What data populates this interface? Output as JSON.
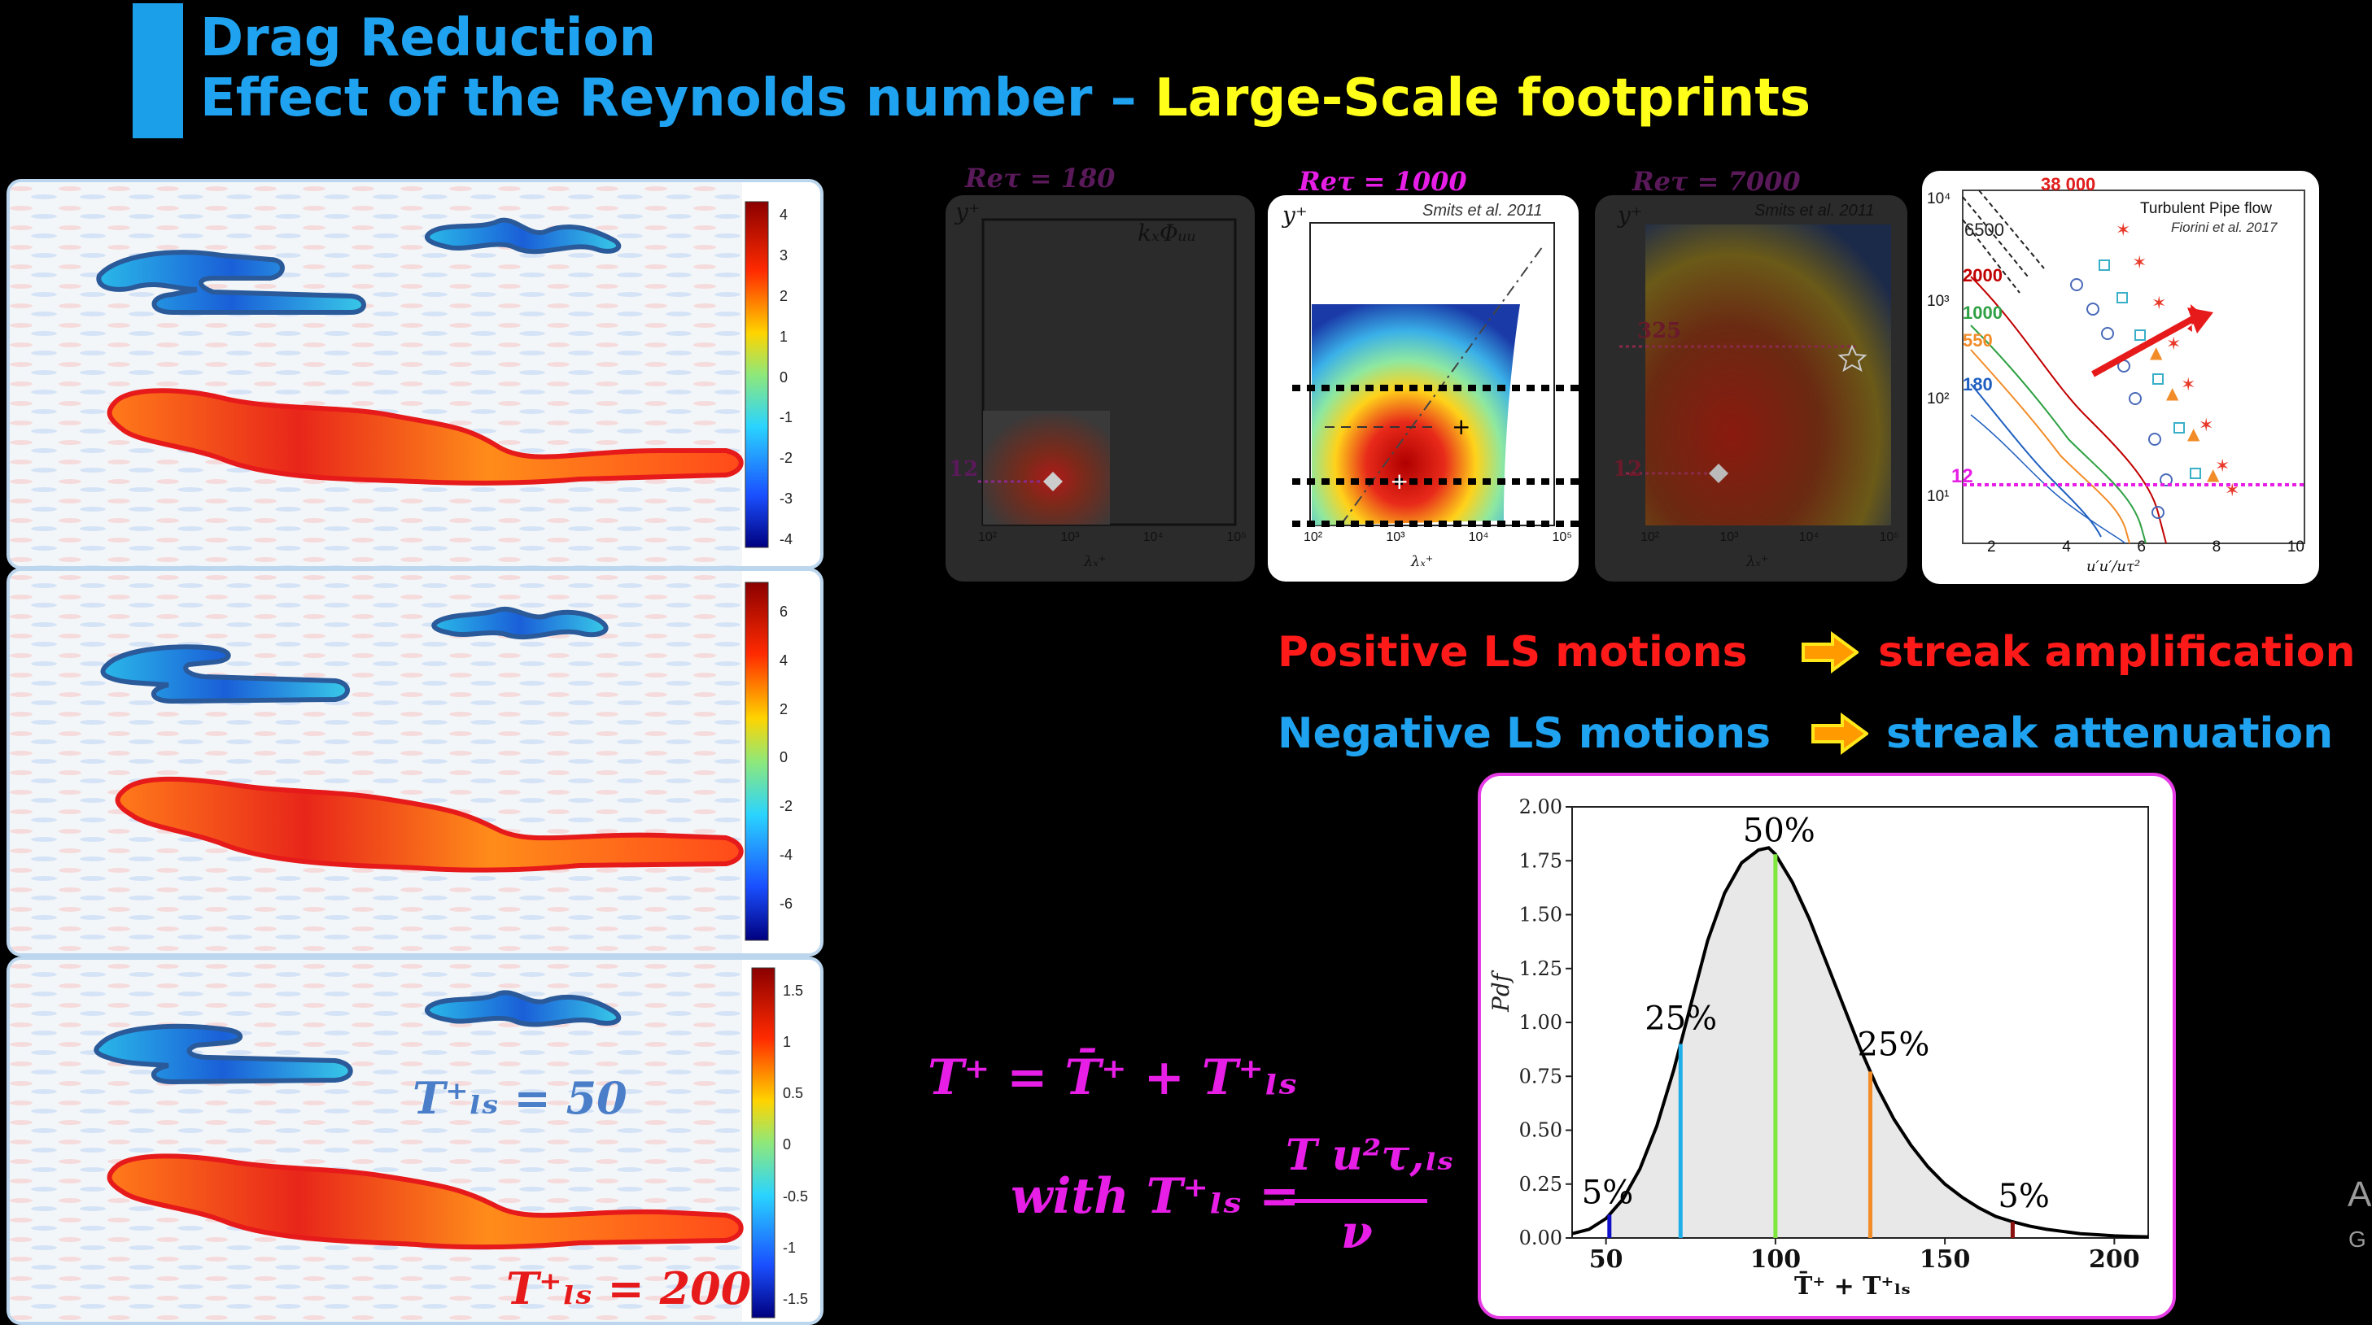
{
  "title": {
    "line1": "Drag Reduction",
    "line2_prefix": "Effect of the Reynolds number – ",
    "line2_highlight": "Large-Scale footprints"
  },
  "colorbars": [
    {
      "ticks": [
        "4",
        "3",
        "2",
        "1",
        "0",
        "-1",
        "-2",
        "-3",
        "-4"
      ]
    },
    {
      "ticks": [
        "6",
        "4",
        "2",
        "0",
        "-2",
        "-4",
        "-6"
      ]
    },
    {
      "ticks": [
        "1.5",
        "1",
        "0.5",
        "0",
        "-0.5",
        "-1",
        "-1.5"
      ]
    }
  ],
  "field_labels": {
    "t50": "T⁺ₗₛ = 50",
    "t200": "T⁺ₗₛ = 200"
  },
  "spectra": [
    {
      "re_label": "Reτ = 180",
      "ylabel": "y⁺",
      "corner": "kₓΦᵤᵤ",
      "marker": "12",
      "xlabel": "λₓ⁺",
      "xticks": [
        "10²",
        "10³",
        "10⁴",
        "10⁵"
      ]
    },
    {
      "re_label": "Reτ = 1000",
      "ylabel": "y⁺",
      "corner": "Smits et al. 2011",
      "xlabel": "λₓ⁺",
      "xticks": [
        "10²",
        "10³",
        "10⁴",
        "10⁵"
      ]
    },
    {
      "re_label": "Reτ = 7000",
      "ylabel": "y⁺",
      "corner": "Smits et al. 2011",
      "marker_top": "325",
      "marker": "12",
      "xlabel": "λₓ⁺",
      "xticks": [
        "10²",
        "10³",
        "10⁴",
        "10⁵"
      ]
    }
  ],
  "pipe": {
    "title": "Turbulent Pipe flow",
    "subtitle": "Fiorini et al. 2017",
    "re_labels": [
      {
        "text": "38 000",
        "color": "#e11d1d"
      },
      {
        "text": "6500",
        "color": "#222222"
      },
      {
        "text": "2000",
        "color": "#c00000"
      },
      {
        "text": "1000",
        "color": "#2ea043"
      },
      {
        "text": "550",
        "color": "#f28c28"
      },
      {
        "text": "180",
        "color": "#1f5fbf"
      }
    ],
    "marker": "12",
    "yticks": [
      "10⁴",
      "10³",
      "10²",
      "10¹"
    ],
    "xticks": [
      "2",
      "4",
      "6",
      "8",
      "10"
    ],
    "xlabel": "u′u′/uτ²"
  },
  "motions": {
    "positive": {
      "label": "Positive LS motions",
      "arrow": "➡",
      "result": "streak amplification",
      "color": "#ff1a1a"
    },
    "negative": {
      "label": "Negative LS motions",
      "arrow": "➡",
      "result": "streak attenuation",
      "color": "#1fa2f0"
    }
  },
  "formula": {
    "line1": "T⁺ = T̄⁺ + T⁺ₗₛ",
    "with": "with T⁺ₗₛ =",
    "numerator": "T u²τ,ₗₛ",
    "denominator": "ν"
  },
  "chart_data": {
    "type": "area",
    "ylabel": "Pdf",
    "xlabel": "T̄⁺ + T⁺ₗₛ",
    "xlim": [
      40,
      210
    ],
    "ylim": [
      0,
      2.0
    ],
    "xticks": [
      "50",
      "100",
      "150",
      "200"
    ],
    "yticks": [
      "0.00",
      "0.25",
      "0.50",
      "0.75",
      "1.00",
      "1.25",
      "1.50",
      "1.75",
      "2.00"
    ],
    "curve": {
      "x": [
        40,
        45,
        50,
        55,
        60,
        65,
        70,
        75,
        80,
        85,
        90,
        95,
        98,
        100,
        105,
        110,
        115,
        120,
        125,
        130,
        135,
        140,
        145,
        150,
        155,
        160,
        165,
        170,
        175,
        180,
        185,
        190,
        195,
        200,
        205,
        210
      ],
      "y": [
        0.02,
        0.04,
        0.09,
        0.18,
        0.32,
        0.52,
        0.78,
        1.08,
        1.38,
        1.6,
        1.74,
        1.8,
        1.81,
        1.78,
        1.65,
        1.48,
        1.28,
        1.08,
        0.88,
        0.7,
        0.55,
        0.43,
        0.33,
        0.25,
        0.19,
        0.14,
        0.1,
        0.075,
        0.055,
        0.04,
        0.03,
        0.02,
        0.015,
        0.01,
        0.007,
        0.005
      ]
    },
    "percentile_lines": [
      {
        "x": 51,
        "label": "5%",
        "color": "#1010c8"
      },
      {
        "x": 72,
        "label": "25%",
        "color": "#1faee8"
      },
      {
        "x": 100,
        "label": "50%",
        "color": "#7ee83c"
      },
      {
        "x": 128,
        "label": "25%",
        "color": "#f28c28"
      },
      {
        "x": 170,
        "label": "5%",
        "color": "#8b1010"
      }
    ]
  },
  "right_edge": {
    "line1": "A",
    "line2": "G"
  }
}
